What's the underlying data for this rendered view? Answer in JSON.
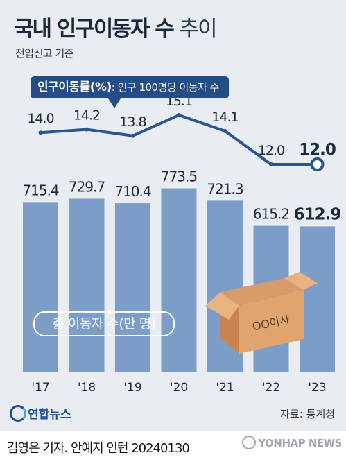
{
  "header": {
    "title_bold": "국내 인구이동자 수",
    "title_light": "추이",
    "subtitle": "전입신고 기준"
  },
  "rate_callout": {
    "label": "인구이동률(%)",
    "description": ": 인구 100명당 이동자 수"
  },
  "bar_label": "총 이동자 수(만 명)",
  "box_label": "OO이사",
  "footer": {
    "agency": "연합뉴스",
    "source": "자료: 통계청",
    "byline": "김영은 기자. 안예지 인턴",
    "date": "20240130",
    "watermark": "YONHAP NEWS"
  },
  "colors": {
    "bar": "#7d9dc9",
    "line": "#2b5590",
    "callout": "#244c86",
    "text": "#1b2a3a"
  },
  "chart_data": [
    {
      "type": "bar",
      "categories": [
        "'17",
        "'18",
        "'19",
        "'20",
        "'21",
        "'22",
        "'23"
      ],
      "series": [
        {
          "name": "총 이동자 수(만 명)",
          "values": [
            715.4,
            729.7,
            710.4,
            773.5,
            721.3,
            615.2,
            612.9
          ]
        }
      ],
      "value_labels": [
        "715.4",
        "729.7",
        "710.4",
        "773.5",
        "721.3",
        "615.2",
        "612.9"
      ],
      "ylim": [
        0,
        800
      ]
    },
    {
      "type": "line",
      "categories": [
        "'17",
        "'18",
        "'19",
        "'20",
        "'21",
        "'22",
        "'23"
      ],
      "series": [
        {
          "name": "인구이동률(%)",
          "values": [
            14.0,
            14.2,
            13.8,
            15.1,
            14.1,
            12.0,
            12.0
          ]
        }
      ],
      "value_labels": [
        "14.0",
        "14.2",
        "13.8",
        "15.1",
        "14.1",
        "12.0",
        "12.0"
      ],
      "ylim": [
        11.5,
        15.5
      ]
    }
  ]
}
